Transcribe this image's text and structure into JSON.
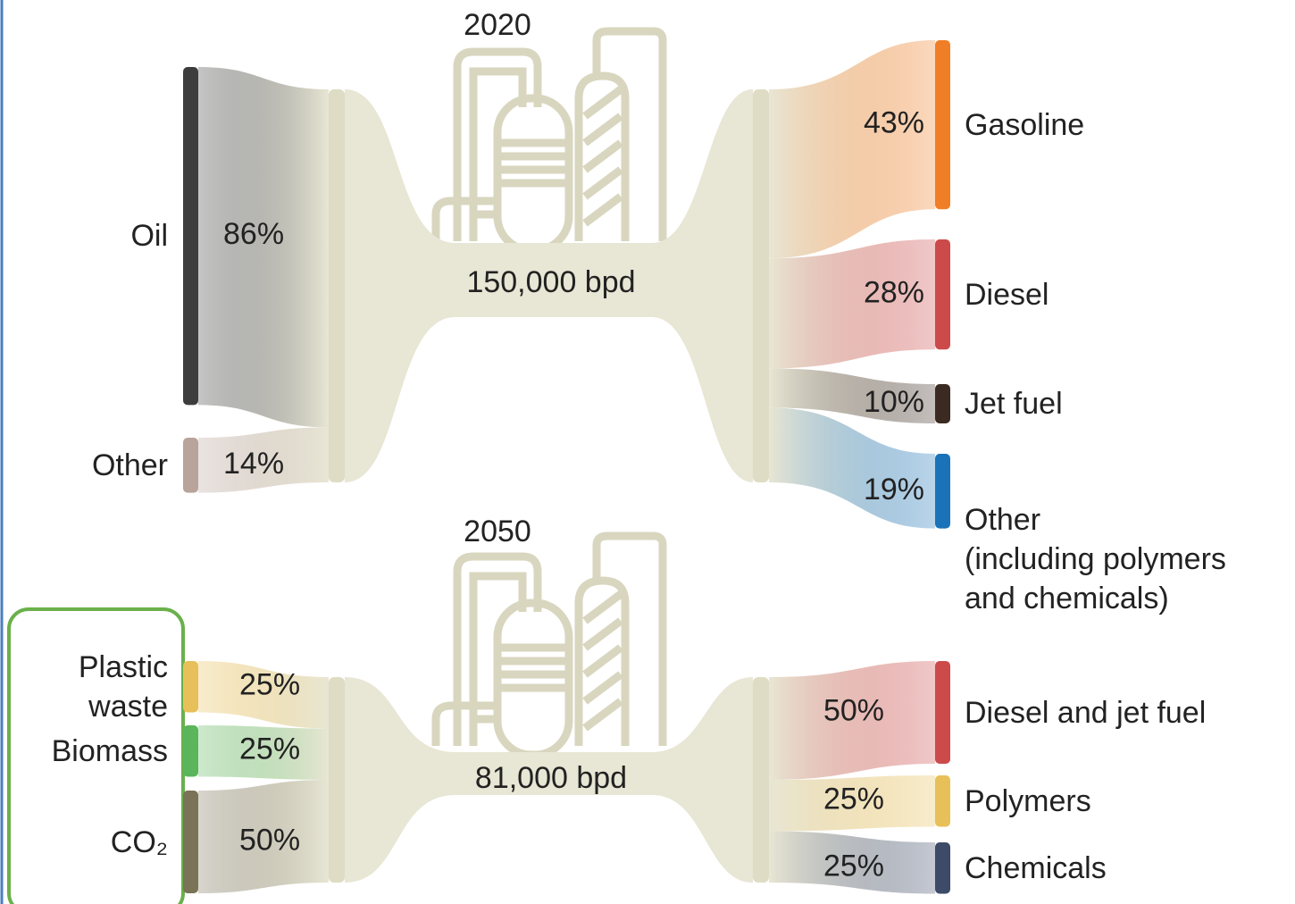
{
  "chart_data": [
    {
      "type": "sankey",
      "title": "2020",
      "annotation": "150,000 bpd",
      "sources": {
        "categories": [
          "Oil",
          "Other"
        ],
        "values": [
          86,
          14
        ],
        "value_labels": [
          "86%",
          "14%"
        ],
        "colors": [
          "#3d3d3d",
          "#b8a49a"
        ]
      },
      "targets": {
        "categories": [
          "Gasoline",
          "Diesel",
          "Jet fuel",
          "Other\n(including polymers\n and chemicals)"
        ],
        "values": [
          43,
          28,
          10,
          19
        ],
        "value_labels": [
          "43%",
          "28%",
          "10%",
          "19%"
        ],
        "colors": [
          "#f07e26",
          "#cc4a4a",
          "#3b2a22",
          "#1a73b8"
        ]
      }
    },
    {
      "type": "sankey",
      "title": "2050",
      "annotation": "81,000 bpd",
      "sources": {
        "categories": [
          "Plastic\nwaste",
          "Biomass",
          "CO₂"
        ],
        "values": [
          25,
          25,
          50
        ],
        "value_labels": [
          "25%",
          "25%",
          "50%"
        ],
        "colors": [
          "#e8c05a",
          "#5bb55a",
          "#7a7358"
        ]
      },
      "targets": {
        "categories": [
          "Diesel and jet fuel",
          "Polymers",
          "Chemicals"
        ],
        "values": [
          50,
          25,
          25
        ],
        "value_labels": [
          "50%",
          "25%",
          "25%"
        ],
        "colors": [
          "#cc4a4a",
          "#e8c05a",
          "#3d4a68"
        ]
      }
    }
  ]
}
